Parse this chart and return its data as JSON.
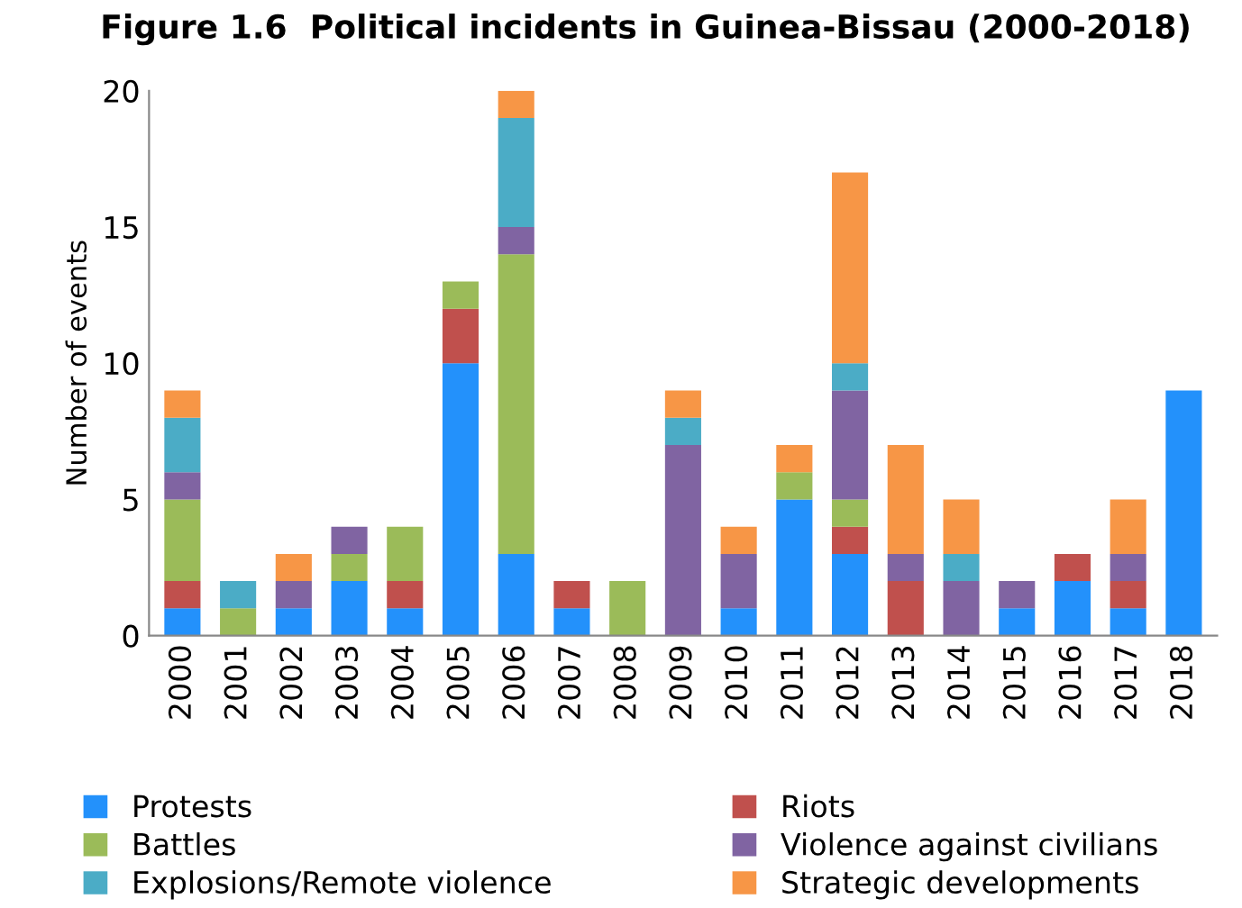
{
  "chart_data": {
    "type": "bar",
    "stacked": true,
    "title": "Figure 1.6  Political incidents in Guinea-Bissau (2000-2018)",
    "ylabel": "Number of events",
    "categories": [
      "2000",
      "2001",
      "2002",
      "2003",
      "2004",
      "2005",
      "2006",
      "2007",
      "2008",
      "2009",
      "2010",
      "2011",
      "2012",
      "2013",
      "2014",
      "2015",
      "2016",
      "2017",
      "2018"
    ],
    "series": [
      {
        "name": "Protests",
        "color": "#2391fb",
        "values": [
          1,
          0,
          1,
          2,
          1,
          10,
          3,
          1,
          0,
          0,
          1,
          5,
          3,
          0,
          0,
          1,
          2,
          1,
          9
        ]
      },
      {
        "name": "Riots",
        "color": "#c0504d",
        "values": [
          1,
          0,
          0,
          0,
          1,
          2,
          0,
          1,
          0,
          0,
          0,
          0,
          1,
          2,
          0,
          0,
          1,
          1,
          0
        ]
      },
      {
        "name": "Battles",
        "color": "#9bbb59",
        "values": [
          3,
          1,
          0,
          1,
          2,
          1,
          11,
          0,
          2,
          0,
          0,
          1,
          1,
          0,
          0,
          0,
          0,
          0,
          0
        ]
      },
      {
        "name": "Violence against civilians",
        "color": "#8064a2",
        "values": [
          1,
          0,
          1,
          1,
          0,
          0,
          1,
          0,
          0,
          7,
          2,
          0,
          4,
          1,
          2,
          1,
          0,
          1,
          0
        ]
      },
      {
        "name": "Explosions/Remote violence",
        "color": "#4bacc6",
        "values": [
          2,
          1,
          0,
          0,
          0,
          0,
          4,
          0,
          0,
          1,
          0,
          0,
          1,
          0,
          1,
          0,
          0,
          0,
          0
        ]
      },
      {
        "name": "Strategic developments",
        "color": "#f79646",
        "values": [
          1,
          0,
          1,
          0,
          0,
          0,
          1,
          0,
          0,
          1,
          1,
          1,
          7,
          4,
          2,
          0,
          0,
          2,
          0
        ]
      }
    ],
    "ylim": [
      0,
      20
    ],
    "yticks": [
      0,
      5,
      10,
      15,
      20
    ],
    "grid": false,
    "legend": "bottom"
  }
}
